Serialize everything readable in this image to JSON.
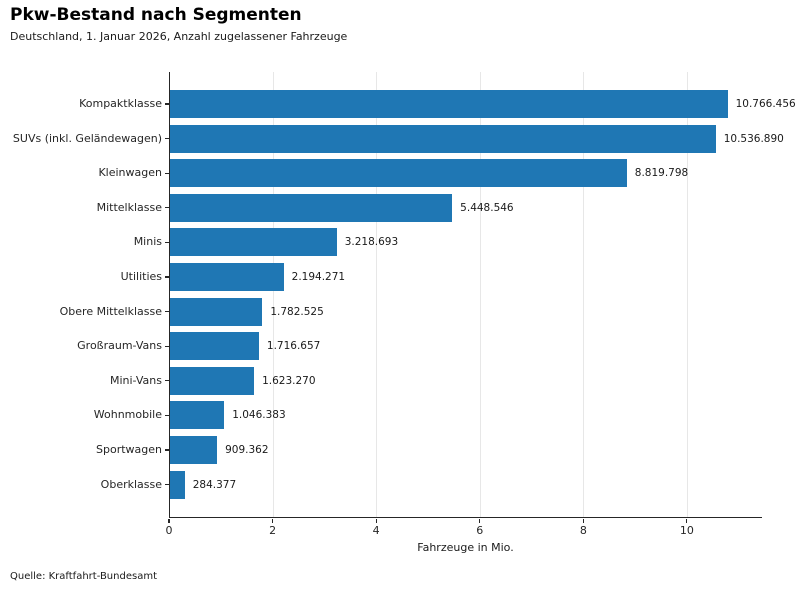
{
  "header": {
    "title": "Pkw-Bestand nach Segmenten",
    "subtitle": "Deutschland, 1. Januar 2026, Anzahl zugelassener Fahrzeuge"
  },
  "footer": {
    "source": "Quelle: Kraftfahrt-Bundesamt"
  },
  "chart_data": {
    "type": "bar",
    "orientation": "horizontal",
    "title": "Pkw-Bestand nach Segmenten",
    "subtitle": "Deutschland, 1. Januar 2026, Anzahl zugelassener Fahrzeuge",
    "xlabel": "Fahrzeuge in Mio.",
    "xlim": [
      0,
      11.45
    ],
    "xticks": [
      0,
      2,
      4,
      6,
      8,
      10
    ],
    "grid": "vertical-light",
    "legend": "none",
    "bar_color": "#1f77b4",
    "categories": [
      "Kompaktklasse",
      "SUVs (inkl. Geländewagen)",
      "Kleinwagen",
      "Mittelklasse",
      "Minis",
      "Utilities",
      "Obere Mittelklasse",
      "Großraum-Vans",
      "Mini-Vans",
      "Wohnmobile",
      "Sportwagen",
      "Oberklasse"
    ],
    "values": [
      10766456,
      10536890,
      8819798,
      5448546,
      3218693,
      2194271,
      1782525,
      1716657,
      1623270,
      1046383,
      909362,
      284377
    ],
    "value_labels": [
      "10.766.456",
      "10.536.890",
      "8.819.798",
      "5.448.546",
      "3.218.693",
      "2.194.271",
      "1.782.525",
      "1.716.657",
      "1.623.270",
      "1.046.383",
      "909.362",
      "284.377"
    ]
  }
}
